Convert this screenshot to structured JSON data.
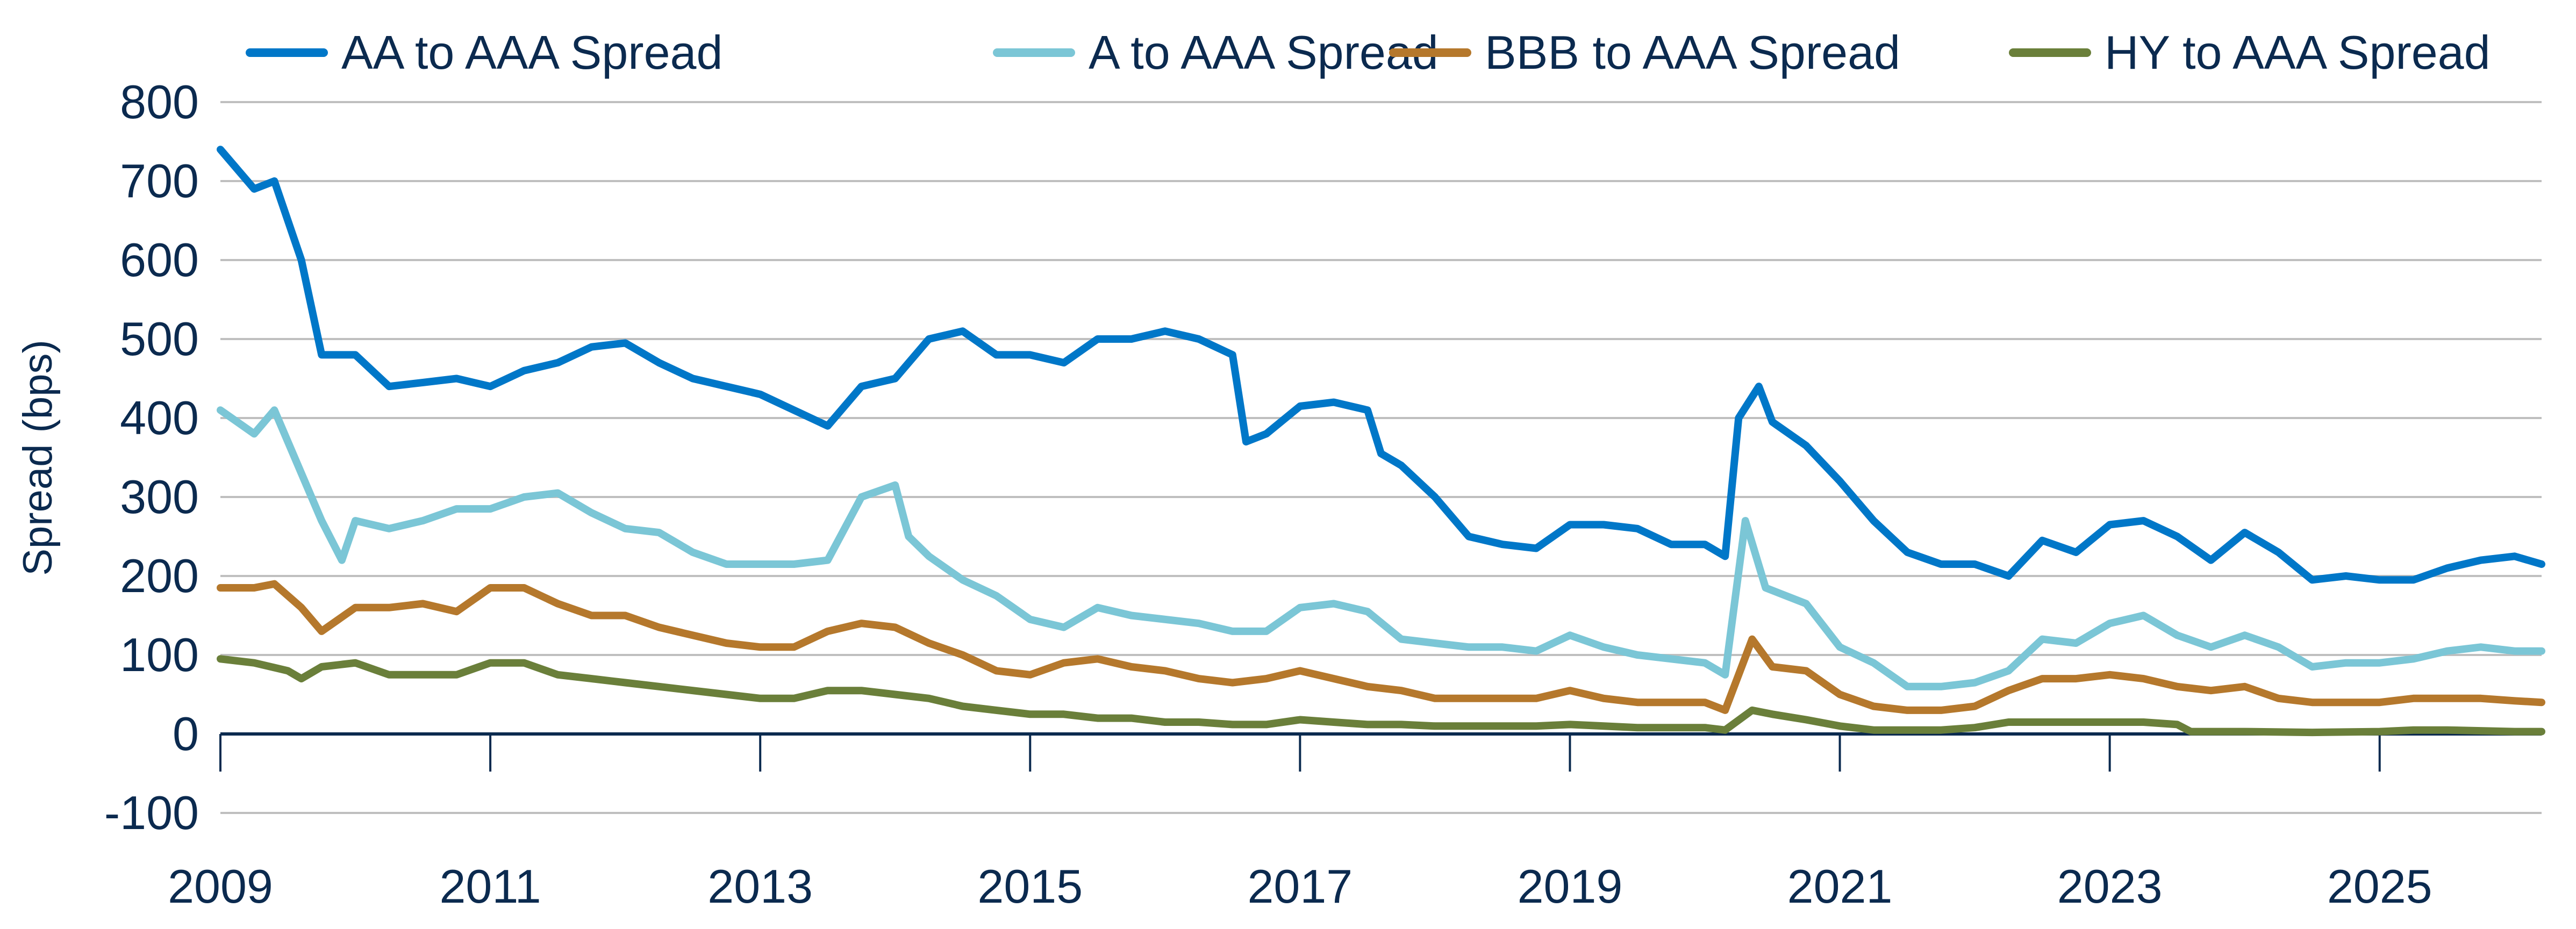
{
  "chart_data": {
    "type": "line",
    "title": "",
    "xlabel": "",
    "ylabel": "Spread (bps)",
    "xlim": [
      2009,
      2026.2
    ],
    "ylim": [
      -100,
      800
    ],
    "yticks": [
      -100,
      0,
      100,
      200,
      300,
      400,
      500,
      600,
      700,
      800
    ],
    "xticks": [
      2009,
      2011,
      2013,
      2015,
      2017,
      2019,
      2021,
      2023,
      2025
    ],
    "grid": true,
    "legend_position": "top",
    "series": [
      {
        "name": "AA to AAA Spread",
        "color": "#0077C8",
        "points": [
          [
            2009,
            740
          ],
          [
            2009.25,
            690
          ],
          [
            2009.4,
            700
          ],
          [
            2009.6,
            600
          ],
          [
            2009.75,
            480
          ],
          [
            2010,
            480
          ],
          [
            2010.25,
            440
          ],
          [
            2010.5,
            445
          ],
          [
            2010.75,
            450
          ],
          [
            2011,
            440
          ],
          [
            2011.25,
            460
          ],
          [
            2011.5,
            470
          ],
          [
            2011.75,
            490
          ],
          [
            2012,
            495
          ],
          [
            2012.25,
            470
          ],
          [
            2012.5,
            450
          ],
          [
            2012.75,
            440
          ],
          [
            2013,
            430
          ],
          [
            2013.25,
            410
          ],
          [
            2013.5,
            390
          ],
          [
            2013.75,
            440
          ],
          [
            2014,
            450
          ],
          [
            2014.25,
            500
          ],
          [
            2014.5,
            510
          ],
          [
            2014.75,
            480
          ],
          [
            2015,
            480
          ],
          [
            2015.25,
            470
          ],
          [
            2015.5,
            500
          ],
          [
            2015.75,
            500
          ],
          [
            2016,
            510
          ],
          [
            2016.25,
            500
          ],
          [
            2016.5,
            480
          ],
          [
            2016.6,
            370
          ],
          [
            2016.75,
            380
          ],
          [
            2017,
            415
          ],
          [
            2017.25,
            420
          ],
          [
            2017.5,
            410
          ],
          [
            2017.6,
            355
          ],
          [
            2017.75,
            340
          ],
          [
            2018,
            300
          ],
          [
            2018.25,
            250
          ],
          [
            2018.5,
            240
          ],
          [
            2018.75,
            235
          ],
          [
            2019,
            265
          ],
          [
            2019.25,
            265
          ],
          [
            2019.5,
            260
          ],
          [
            2019.75,
            240
          ],
          [
            2020,
            240
          ],
          [
            2020.15,
            225
          ],
          [
            2020.25,
            400
          ],
          [
            2020.4,
            440
          ],
          [
            2020.5,
            395
          ],
          [
            2020.75,
            365
          ],
          [
            2021,
            320
          ],
          [
            2021.25,
            270
          ],
          [
            2021.5,
            230
          ],
          [
            2021.75,
            215
          ],
          [
            2022,
            215
          ],
          [
            2022.25,
            200
          ],
          [
            2022.5,
            245
          ],
          [
            2022.75,
            230
          ],
          [
            2023,
            265
          ],
          [
            2023.25,
            270
          ],
          [
            2023.5,
            250
          ],
          [
            2023.75,
            220
          ],
          [
            2024,
            255
          ],
          [
            2024.25,
            230
          ],
          [
            2024.5,
            195
          ],
          [
            2024.75,
            200
          ],
          [
            2025,
            195
          ],
          [
            2025.25,
            195
          ],
          [
            2025.5,
            210
          ],
          [
            2025.75,
            220
          ],
          [
            2026,
            225
          ],
          [
            2026.2,
            215
          ]
        ]
      },
      {
        "name": "A to AAA Spread",
        "color": "#7BC6D6",
        "points": [
          [
            2009,
            410
          ],
          [
            2009.25,
            380
          ],
          [
            2009.4,
            410
          ],
          [
            2009.6,
            330
          ],
          [
            2009.75,
            270
          ],
          [
            2009.9,
            220
          ],
          [
            2010,
            270
          ],
          [
            2010.25,
            260
          ],
          [
            2010.5,
            270
          ],
          [
            2010.75,
            285
          ],
          [
            2011,
            285
          ],
          [
            2011.25,
            300
          ],
          [
            2011.5,
            305
          ],
          [
            2011.75,
            280
          ],
          [
            2012,
            260
          ],
          [
            2012.25,
            255
          ],
          [
            2012.5,
            230
          ],
          [
            2012.75,
            215
          ],
          [
            2013,
            215
          ],
          [
            2013.25,
            215
          ],
          [
            2013.5,
            220
          ],
          [
            2013.75,
            300
          ],
          [
            2014,
            315
          ],
          [
            2014.1,
            250
          ],
          [
            2014.25,
            225
          ],
          [
            2014.5,
            195
          ],
          [
            2014.75,
            175
          ],
          [
            2015,
            145
          ],
          [
            2015.25,
            135
          ],
          [
            2015.5,
            160
          ],
          [
            2015.75,
            150
          ],
          [
            2016,
            145
          ],
          [
            2016.25,
            140
          ],
          [
            2016.5,
            130
          ],
          [
            2016.75,
            130
          ],
          [
            2017,
            160
          ],
          [
            2017.25,
            165
          ],
          [
            2017.5,
            155
          ],
          [
            2017.75,
            120
          ],
          [
            2018,
            115
          ],
          [
            2018.25,
            110
          ],
          [
            2018.5,
            110
          ],
          [
            2018.75,
            105
          ],
          [
            2019,
            125
          ],
          [
            2019.25,
            110
          ],
          [
            2019.5,
            100
          ],
          [
            2019.75,
            95
          ],
          [
            2020,
            90
          ],
          [
            2020.15,
            75
          ],
          [
            2020.3,
            270
          ],
          [
            2020.45,
            185
          ],
          [
            2020.75,
            165
          ],
          [
            2021,
            110
          ],
          [
            2021.25,
            90
          ],
          [
            2021.5,
            60
          ],
          [
            2021.75,
            60
          ],
          [
            2022,
            65
          ],
          [
            2022.25,
            80
          ],
          [
            2022.5,
            120
          ],
          [
            2022.75,
            115
          ],
          [
            2023,
            140
          ],
          [
            2023.25,
            150
          ],
          [
            2023.5,
            125
          ],
          [
            2023.75,
            110
          ],
          [
            2024,
            125
          ],
          [
            2024.25,
            110
          ],
          [
            2024.5,
            85
          ],
          [
            2024.75,
            90
          ],
          [
            2025,
            90
          ],
          [
            2025.25,
            95
          ],
          [
            2025.5,
            105
          ],
          [
            2025.75,
            110
          ],
          [
            2026,
            105
          ],
          [
            2026.2,
            105
          ]
        ]
      },
      {
        "name": "BBB to AAA Spread",
        "color": "#B5782C",
        "points": [
          [
            2009,
            185
          ],
          [
            2009.25,
            185
          ],
          [
            2009.4,
            190
          ],
          [
            2009.6,
            160
          ],
          [
            2009.75,
            130
          ],
          [
            2010,
            160
          ],
          [
            2010.25,
            160
          ],
          [
            2010.5,
            165
          ],
          [
            2010.75,
            155
          ],
          [
            2011,
            185
          ],
          [
            2011.25,
            185
          ],
          [
            2011.5,
            165
          ],
          [
            2011.75,
            150
          ],
          [
            2012,
            150
          ],
          [
            2012.25,
            135
          ],
          [
            2012.5,
            125
          ],
          [
            2012.75,
            115
          ],
          [
            2013,
            110
          ],
          [
            2013.25,
            110
          ],
          [
            2013.5,
            130
          ],
          [
            2013.75,
            140
          ],
          [
            2014,
            135
          ],
          [
            2014.25,
            115
          ],
          [
            2014.5,
            100
          ],
          [
            2014.75,
            80
          ],
          [
            2015,
            75
          ],
          [
            2015.25,
            90
          ],
          [
            2015.5,
            95
          ],
          [
            2015.75,
            85
          ],
          [
            2016,
            80
          ],
          [
            2016.25,
            70
          ],
          [
            2016.5,
            65
          ],
          [
            2016.75,
            70
          ],
          [
            2017,
            80
          ],
          [
            2017.25,
            70
          ],
          [
            2017.5,
            60
          ],
          [
            2017.75,
            55
          ],
          [
            2018,
            45
          ],
          [
            2018.25,
            45
          ],
          [
            2018.5,
            45
          ],
          [
            2018.75,
            45
          ],
          [
            2019,
            55
          ],
          [
            2019.25,
            45
          ],
          [
            2019.5,
            40
          ],
          [
            2019.75,
            40
          ],
          [
            2020,
            40
          ],
          [
            2020.15,
            30
          ],
          [
            2020.35,
            120
          ],
          [
            2020.5,
            85
          ],
          [
            2020.75,
            80
          ],
          [
            2021,
            50
          ],
          [
            2021.25,
            35
          ],
          [
            2021.5,
            30
          ],
          [
            2021.75,
            30
          ],
          [
            2022,
            35
          ],
          [
            2022.25,
            55
          ],
          [
            2022.5,
            70
          ],
          [
            2022.75,
            70
          ],
          [
            2023,
            75
          ],
          [
            2023.25,
            70
          ],
          [
            2023.5,
            60
          ],
          [
            2023.75,
            55
          ],
          [
            2024,
            60
          ],
          [
            2024.25,
            45
          ],
          [
            2024.5,
            40
          ],
          [
            2024.75,
            40
          ],
          [
            2025,
            40
          ],
          [
            2025.25,
            45
          ],
          [
            2025.5,
            45
          ],
          [
            2025.75,
            45
          ],
          [
            2026,
            42
          ],
          [
            2026.2,
            40
          ]
        ]
      },
      {
        "name": "HY to AAA Spread",
        "color": "#6A7F3A",
        "points": [
          [
            2009,
            95
          ],
          [
            2009.25,
            90
          ],
          [
            2009.5,
            80
          ],
          [
            2009.6,
            70
          ],
          [
            2009.75,
            85
          ],
          [
            2010,
            90
          ],
          [
            2010.25,
            75
          ],
          [
            2010.5,
            75
          ],
          [
            2010.75,
            75
          ],
          [
            2011,
            90
          ],
          [
            2011.25,
            90
          ],
          [
            2011.5,
            75
          ],
          [
            2011.75,
            70
          ],
          [
            2012,
            65
          ],
          [
            2012.25,
            60
          ],
          [
            2012.5,
            55
          ],
          [
            2012.75,
            50
          ],
          [
            2013,
            45
          ],
          [
            2013.25,
            45
          ],
          [
            2013.5,
            55
          ],
          [
            2013.75,
            55
          ],
          [
            2014,
            50
          ],
          [
            2014.25,
            45
          ],
          [
            2014.5,
            35
          ],
          [
            2014.75,
            30
          ],
          [
            2015,
            25
          ],
          [
            2015.25,
            25
          ],
          [
            2015.5,
            20
          ],
          [
            2015.75,
            20
          ],
          [
            2016,
            15
          ],
          [
            2016.25,
            15
          ],
          [
            2016.5,
            12
          ],
          [
            2016.75,
            12
          ],
          [
            2017,
            18
          ],
          [
            2017.25,
            15
          ],
          [
            2017.5,
            12
          ],
          [
            2017.75,
            12
          ],
          [
            2018,
            10
          ],
          [
            2018.25,
            10
          ],
          [
            2018.5,
            10
          ],
          [
            2018.75,
            10
          ],
          [
            2019,
            12
          ],
          [
            2019.25,
            10
          ],
          [
            2019.5,
            8
          ],
          [
            2019.75,
            8
          ],
          [
            2020,
            8
          ],
          [
            2020.15,
            5
          ],
          [
            2020.35,
            30
          ],
          [
            2020.5,
            25
          ],
          [
            2020.75,
            18
          ],
          [
            2021,
            10
          ],
          [
            2021.25,
            5
          ],
          [
            2021.5,
            5
          ],
          [
            2021.75,
            5
          ],
          [
            2022,
            8
          ],
          [
            2022.25,
            15
          ],
          [
            2022.5,
            15
          ],
          [
            2022.75,
            15
          ],
          [
            2023,
            15
          ],
          [
            2023.25,
            15
          ],
          [
            2023.5,
            12
          ],
          [
            2023.6,
            3
          ],
          [
            2023.75,
            3
          ],
          [
            2024,
            3
          ],
          [
            2024.5,
            2
          ],
          [
            2025,
            3
          ],
          [
            2025.25,
            5
          ],
          [
            2025.5,
            5
          ],
          [
            2026,
            3
          ],
          [
            2026.2,
            3
          ]
        ]
      }
    ]
  }
}
